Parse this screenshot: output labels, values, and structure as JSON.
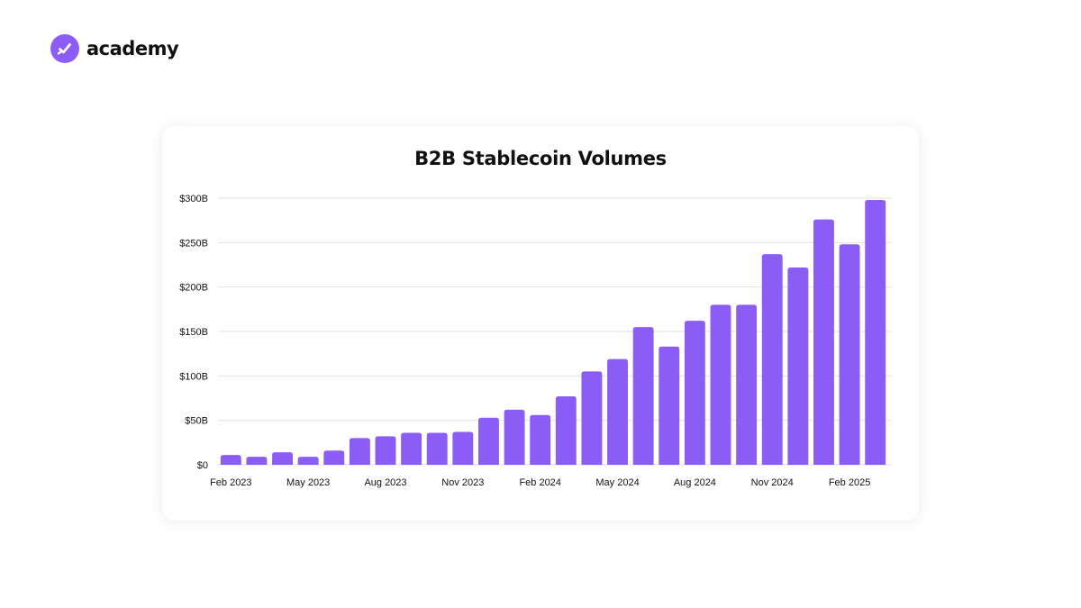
{
  "brand": {
    "name": "academy",
    "icon": "checkmark-icon",
    "color": "#8b5cf6"
  },
  "chart_data": {
    "type": "bar",
    "title": "B2B Stablecoin Volumes",
    "xlabel": "",
    "ylabel": "",
    "bar_color": "#8b5cf6",
    "grid": true,
    "ylim": [
      0,
      300
    ],
    "y_ticks": [
      {
        "value": 0,
        "label": "$0"
      },
      {
        "value": 50,
        "label": "$50B"
      },
      {
        "value": 100,
        "label": "$100B"
      },
      {
        "value": 150,
        "label": "$150B"
      },
      {
        "value": 200,
        "label": "$200B"
      },
      {
        "value": 250,
        "label": "$250B"
      },
      {
        "value": 300,
        "label": "$300B"
      }
    ],
    "categories": [
      "Feb 2023",
      "Mar 2023",
      "Apr 2023",
      "May 2023",
      "Jun 2023",
      "Jul 2023",
      "Aug 2023",
      "Sep 2023",
      "Oct 2023",
      "Nov 2023",
      "Dec 2023",
      "Jan 2024",
      "Feb 2024",
      "Mar 2024",
      "Apr 2024",
      "May 2024",
      "Jun 2024",
      "Jul 2024",
      "Aug 2024",
      "Sep 2024",
      "Oct 2024",
      "Nov 2024",
      "Dec 2024",
      "Jan 2025",
      "Feb 2025",
      "Mar 2025"
    ],
    "x_tick_labels": [
      "Feb 2023",
      "May 2023",
      "Aug 2023",
      "Nov 2023",
      "Feb 2024",
      "May 2024",
      "Aug 2024",
      "Nov 2024",
      "Feb 2025"
    ],
    "values": [
      11,
      9,
      14,
      9,
      16,
      30,
      32,
      36,
      36,
      37,
      53,
      62,
      56,
      77,
      105,
      119,
      155,
      133,
      162,
      180,
      180,
      237,
      222,
      276,
      248,
      298
    ]
  }
}
